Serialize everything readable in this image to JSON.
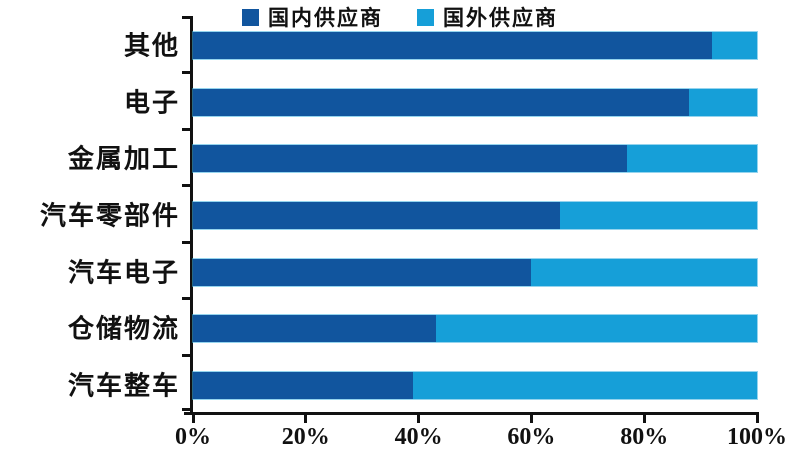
{
  "legend": {
    "items": [
      {
        "label": "国内供应商",
        "color": "#11559E"
      },
      {
        "label": "国外供应商",
        "color": "#169FD8"
      }
    ]
  },
  "chart_data": {
    "type": "bar",
    "orientation": "horizontal",
    "stacked": true,
    "title": "",
    "xlabel": "",
    "ylabel": "",
    "categories": [
      "其他",
      "电子",
      "金属加工",
      "汽车零部件",
      "汽车电子",
      "仓储物流",
      "汽车整车"
    ],
    "series": [
      {
        "name": "国内供应商",
        "color": "#11559E",
        "values": [
          92,
          88,
          77,
          65,
          60,
          43,
          39
        ]
      },
      {
        "name": "国外供应商",
        "color": "#169FD8",
        "values": [
          8,
          12,
          23,
          35,
          40,
          57,
          61
        ]
      }
    ],
    "unit": "%",
    "x_axis": {
      "min": 0,
      "max": 100,
      "tick_labels": [
        "0%",
        "20%",
        "40%",
        "60%",
        "80%",
        "100%"
      ]
    },
    "legend_position": "top-center",
    "grid": false,
    "background": "#ffffff",
    "axis_color": "#111111"
  }
}
